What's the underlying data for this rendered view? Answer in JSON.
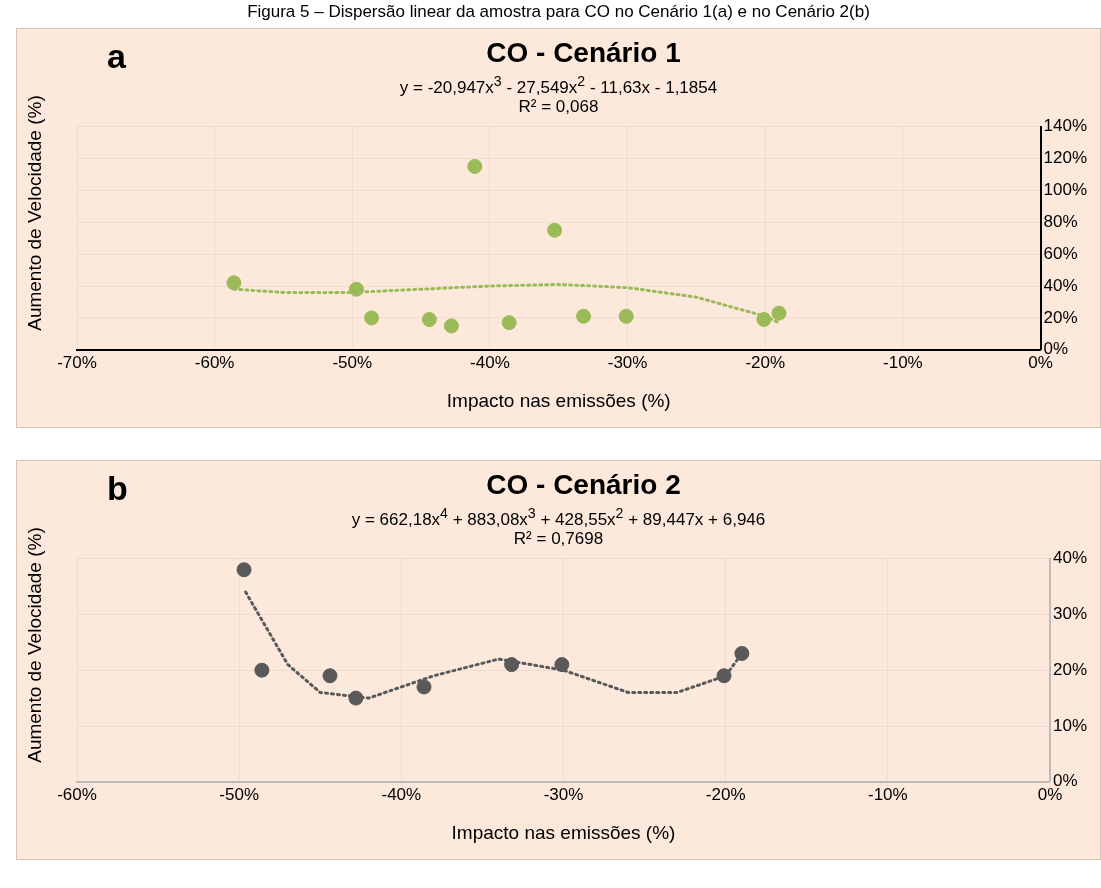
{
  "chart_data": [
    {
      "type": "scatter",
      "title": "CO - Cenário 1",
      "xlabel": "Impacto nas emissões (%)",
      "ylabel": "Aumento de Velocidade (%)",
      "annotations": [
        "a",
        "y = -20,947x$^{3}$ - 27,549x$^{2}$ - 11,63x - 1,1854",
        "R² = 0,068",
        "Figura 5 – Dispersão linear da amostra para CO no Cenário 1(a) e no Cenário 2(b)"
      ],
      "series": [
        {
          "marker": "circle",
          "color": "#9bbb59",
          "x": [
            -58.6,
            -49.7,
            -48.6,
            -44.4,
            -42.8,
            -38.6,
            -33.2,
            -30.1,
            -20.1,
            -19.0,
            -41.1,
            -35.3
          ],
          "values": [
            42,
            38,
            20,
            19,
            15,
            17,
            21,
            21,
            19,
            23,
            115,
            75
          ]
        },
        {
          "type": "line",
          "marker": "none",
          "color": "#9bbb59",
          "line_style": "dotted",
          "x": [
            -58.6,
            -55,
            -50,
            -45,
            -40,
            -35,
            -30,
            -25,
            -20,
            -19
          ],
          "values": [
            38,
            36,
            36,
            38,
            40,
            41,
            39,
            33,
            21,
            17
          ]
        }
      ],
      "grid": true,
      "legend": false,
      "xlim": [
        -70,
        0
      ],
      "xticks": [
        {
          "value": -70,
          "label": "-70%"
        },
        {
          "value": -60,
          "label": "-60%"
        },
        {
          "value": -50,
          "label": "-50%"
        },
        {
          "value": -40,
          "label": "-40%"
        },
        {
          "value": -30,
          "label": "-30%"
        },
        {
          "value": -20,
          "label": "-20%"
        },
        {
          "value": -10,
          "label": "-10%"
        },
        {
          "value": 0,
          "label": "0%"
        }
      ],
      "ylim": [
        0,
        140
      ],
      "yticks": [
        {
          "value": 0,
          "label": "0%"
        },
        {
          "value": 20,
          "label": "20%"
        },
        {
          "value": 40,
          "label": "40%"
        },
        {
          "value": 60,
          "label": "60%"
        },
        {
          "value": 80,
          "label": "80%"
        },
        {
          "value": 100,
          "label": "100%"
        },
        {
          "value": 120,
          "label": "120%"
        },
        {
          "value": 140,
          "label": "140%"
        }
      ]
    },
    {
      "type": "scatter",
      "title": "CO - Cenário 2",
      "xlabel": "Impacto nas emissões (%)",
      "ylabel": "Aumento de Velocidade (%)",
      "annotations": [
        "b",
        "y = 662,18x$^{4}$ + 883,08x$^{3}$ + 428,55x$^{2}$ + 89,447x + 6,946",
        "R² = 0,7698"
      ],
      "series": [
        {
          "marker": "circle",
          "color": "#595959",
          "x": [
            -49.7,
            -48.6,
            -44.4,
            -42.8,
            -38.6,
            -33.2,
            -30.1,
            -20.1,
            -19.0
          ],
          "values": [
            38,
            20,
            19,
            15,
            17,
            21,
            21,
            19,
            23
          ]
        },
        {
          "type": "line",
          "marker": "none",
          "color": "#595959",
          "line_style": "dotted",
          "x": [
            -49.6,
            -47,
            -45,
            -42,
            -38,
            -34,
            -30,
            -26,
            -23,
            -20,
            -19
          ],
          "values": [
            34,
            21,
            16,
            15,
            19,
            22,
            20,
            16,
            16,
            19,
            23
          ]
        }
      ],
      "grid": true,
      "legend": false,
      "xlim": [
        -60,
        0
      ],
      "xticks": [
        {
          "value": -60,
          "label": "-60%"
        },
        {
          "value": -50,
          "label": "-50%"
        },
        {
          "value": -40,
          "label": "-40%"
        },
        {
          "value": -30,
          "label": "-30%"
        },
        {
          "value": -20,
          "label": "-20%"
        },
        {
          "value": -10,
          "label": "-10%"
        },
        {
          "value": 0,
          "label": "0%"
        }
      ],
      "ylim": [
        0,
        40
      ],
      "yticks": [
        {
          "value": 0,
          "label": "0%"
        },
        {
          "value": 10,
          "label": "10%"
        },
        {
          "value": 20,
          "label": "20%"
        },
        {
          "value": 30,
          "label": "30%"
        },
        {
          "value": 40,
          "label": "40%"
        }
      ]
    }
  ]
}
